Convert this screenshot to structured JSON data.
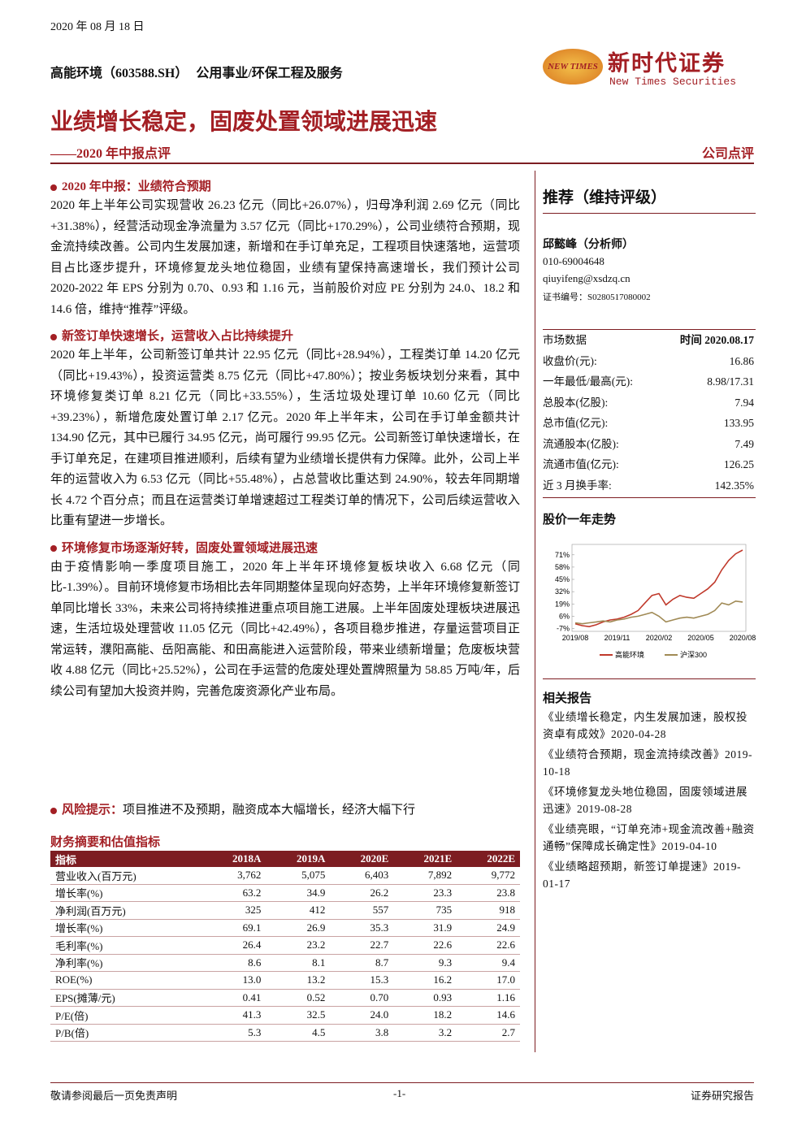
{
  "header": {
    "date": "2020 年 08 月 18 日",
    "company": "高能环境（603588.SH）",
    "industry": "公用事业/环保工程及服务",
    "logo_mark": "NEW TIMES",
    "logo_cn": "新时代证券",
    "logo_en": "New Times Securities"
  },
  "title": {
    "main": "业绩增长稳定，固废处置领域进展迅速",
    "sub": "——2020 年中报点评",
    "type": "公司点评"
  },
  "sections": [
    {
      "heading": "2020 年中报：业绩符合预期",
      "text": "2020 年上半年公司实现营收 26.23 亿元（同比+26.07%），归母净利润 2.69 亿元（同比+31.38%），经营活动现金净流量为 3.57 亿元（同比+170.29%），公司业绩符合预期，现金流持续改善。公司内生发展加速，新增和在手订单充足，工程项目快速落地，运营项目占比逐步提升，环境修复龙头地位稳固，业绩有望保持高速增长，我们预计公司 2020-2022 年 EPS 分别为 0.70、0.93 和 1.16 元，当前股价对应 PE 分别为 24.0、18.2 和 14.6 倍，维持“推荐”评级。"
    },
    {
      "heading": "新签订单快速增长，运营收入占比持续提升",
      "text": "2020 年上半年，公司新签订单共计 22.95 亿元（同比+28.94%），工程类订单 14.20 亿元（同比+19.43%），投资运营类 8.75 亿元（同比+47.80%）；按业务板块划分来看，其中环境修复类订单 8.21 亿元（同比+33.55%），生活垃圾处理订单 10.60 亿元（同比+39.23%），新增危废处置订单 2.17 亿元。2020 年上半年末，公司在手订单金额共计 134.90 亿元，其中已履行 34.95 亿元，尚可履行 99.95 亿元。公司新签订单快速增长，在手订单充足，在建项目推进顺利，后续有望为业绩增长提供有力保障。此外，公司上半年的运营收入为 6.53 亿元（同比+55.48%），占总营收比重达到 24.90%，较去年同期增长 4.72 个百分点；而且在运营类订单增速超过工程类订单的情况下，公司后续运营收入比重有望进一步增长。"
    },
    {
      "heading": "环境修复市场逐渐好转，固废处置领域进展迅速",
      "text": "由于疫情影响一季度项目施工，2020 年上半年环境修复板块收入 6.68 亿元（同比-1.39%）。目前环境修复市场相比去年同期整体呈现向好态势，上半年环境修复新签订单同比增长 33%，未来公司将持续推进重点项目施工进展。上半年固废处理板块进展迅速，生活垃圾处理营收 11.05 亿元（同比+42.49%），各项目稳步推进，存量运营项目正常运转，濮阳高能、岳阳高能、和田高能进入运营阶段，带来业绩新增量；危废板块营收 4.88 亿元（同比+25.52%），公司在手运营的危废处理处置牌照量为 58.85 万吨/年，后续公司有望加大投资并购，完善危废资源化产业布局。"
    }
  ],
  "risk": {
    "heading": "风险提示：",
    "text": "项目推进不及预期，融资成本大幅增长，经济大幅下行"
  },
  "table": {
    "title": "财务摘要和估值指标",
    "header": [
      "指标",
      "2018A",
      "2019A",
      "2020E",
      "2021E",
      "2022E"
    ],
    "rows": [
      [
        "营业收入(百万元)",
        "3,762",
        "5,075",
        "6,403",
        "7,892",
        "9,772"
      ],
      [
        "增长率(%)",
        "63.2",
        "34.9",
        "26.2",
        "23.3",
        "23.8"
      ],
      [
        "净利润(百万元)",
        "325",
        "412",
        "557",
        "735",
        "918"
      ],
      [
        "增长率(%)",
        "69.1",
        "26.9",
        "35.3",
        "31.9",
        "24.9"
      ],
      [
        "毛利率(%)",
        "26.4",
        "23.2",
        "22.7",
        "22.6",
        "22.6"
      ],
      [
        "净利率(%)",
        "8.6",
        "8.1",
        "8.7",
        "9.3",
        "9.4"
      ],
      [
        "ROE(%)",
        "13.0",
        "13.2",
        "15.3",
        "16.2",
        "17.0"
      ],
      [
        "EPS(摊薄/元)",
        "0.41",
        "0.52",
        "0.70",
        "0.93",
        "1.16"
      ],
      [
        "P/E(倍)",
        "41.3",
        "32.5",
        "24.0",
        "18.2",
        "14.6"
      ],
      [
        "P/B(倍)",
        "5.3",
        "4.5",
        "3.8",
        "3.2",
        "2.7"
      ]
    ]
  },
  "sidebar": {
    "rating": "推荐（维持评级）",
    "analyst": "邱懿峰（分析师）",
    "phone": "010-69004648",
    "email": "qiuyifeng@xsdzq.cn",
    "cert": "证书编号：S0280517080002"
  },
  "market": {
    "label": "市场数据",
    "date": "时间 2020.08.17",
    "rows": [
      [
        "收盘价(元):",
        "16.86"
      ],
      [
        "一年最低/最高(元):",
        "8.98/17.31"
      ],
      [
        "总股本(亿股):",
        "7.94"
      ],
      [
        "总市值(亿元):",
        "133.95"
      ],
      [
        "流通股本(亿股):",
        "7.49"
      ],
      [
        "流通市值(亿元):",
        "126.25"
      ],
      [
        "近 3 月换手率:",
        "142.35%"
      ]
    ]
  },
  "chart_title": "股价一年走势",
  "chart_data": {
    "type": "line",
    "categories": [
      "2019/08",
      null,
      null,
      null,
      null,
      null,
      "2019/11",
      null,
      null,
      null,
      null,
      null,
      "2020/02",
      null,
      null,
      null,
      null,
      null,
      "2020/05",
      null,
      null,
      null,
      null,
      null,
      "2020/08"
    ],
    "series": [
      {
        "name": "高能环境",
        "color": "#c0392b",
        "values": [
          -2,
          -4,
          -5,
          -3,
          0,
          2,
          3,
          5,
          8,
          12,
          20,
          28,
          30,
          18,
          24,
          28,
          26,
          25,
          30,
          35,
          42,
          55,
          65,
          72,
          76
        ]
      },
      {
        "name": "沪深300",
        "color": "#a08a55",
        "values": [
          -1,
          -2,
          -1,
          0,
          1,
          0,
          2,
          3,
          5,
          6,
          8,
          10,
          6,
          0,
          2,
          4,
          5,
          4,
          6,
          8,
          12,
          20,
          18,
          22,
          21
        ]
      }
    ],
    "ylim": [
      -10,
      82
    ],
    "yticks": [
      {
        "value": -7,
        "label": "-7%"
      },
      {
        "value": 6,
        "label": "6%"
      },
      {
        "value": 19,
        "label": "19%"
      },
      {
        "value": 32,
        "label": "32%"
      },
      {
        "value": 45,
        "label": "45%"
      },
      {
        "value": 58,
        "label": "58%"
      },
      {
        "value": 71,
        "label": "71%"
      }
    ]
  },
  "related": {
    "title": "相关报告",
    "items": [
      "《业绩增长稳定，内生发展加速，股权投资卓有成效》2020-04-28",
      "《业绩符合预期，现金流持续改善》2019-10-18",
      "《环境修复龙头地位稳固，固废领域进展迅速》2019-08-28",
      "《业绩亮眼，“订单充沛+现金流改善+融资通畅”保障成长确定性》2019-04-10",
      "《业绩略超预期，新签订单提速》2019-01-17"
    ]
  },
  "footer": {
    "left": "敬请参阅最后一页免责声明",
    "center": "-1-",
    "right": "证券研究报告"
  }
}
